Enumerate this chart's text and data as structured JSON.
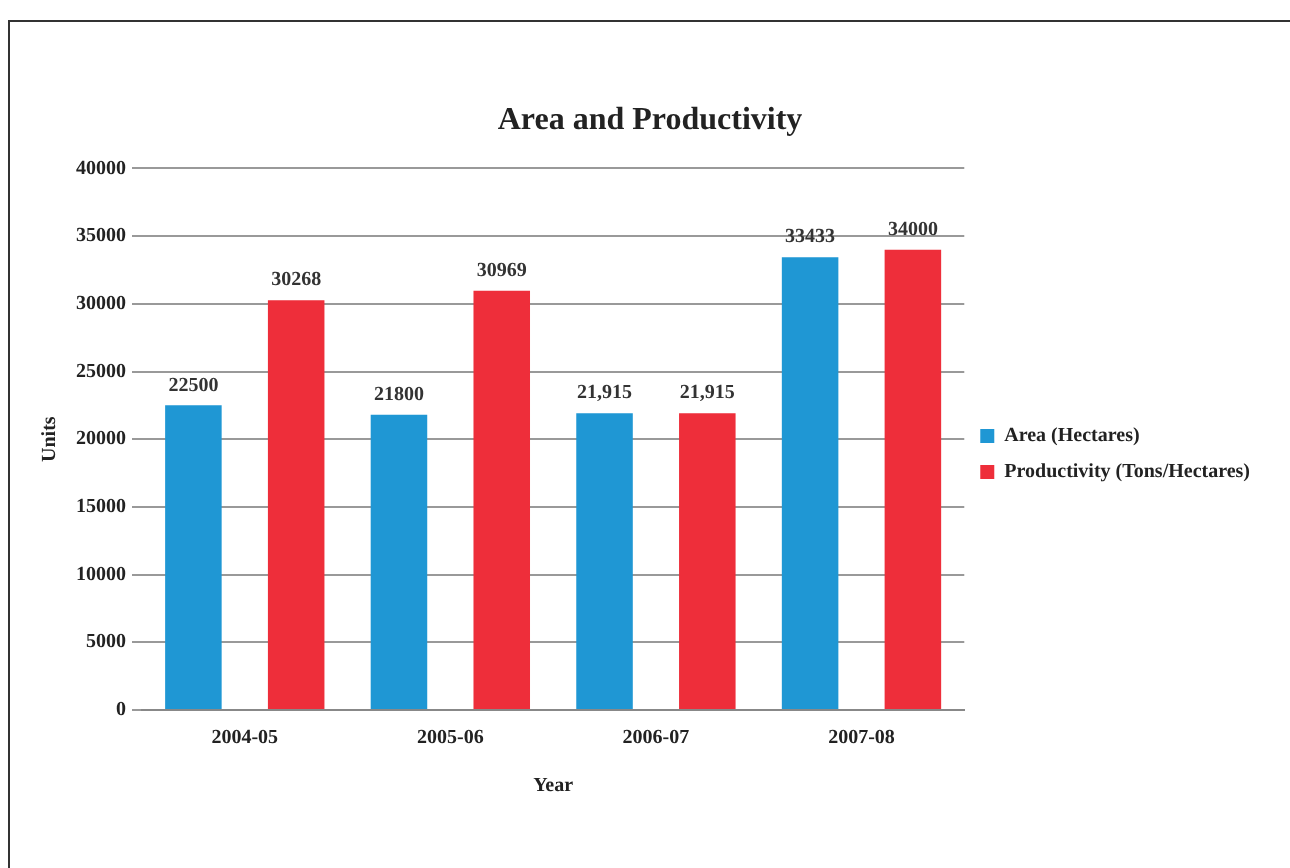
{
  "chart_data": {
    "type": "bar",
    "title": "Area and Productivity",
    "xlabel": "Year",
    "ylabel": "Units",
    "categories": [
      "2004-05",
      "2005-06",
      "2006-07",
      "2007-08"
    ],
    "series": [
      {
        "name": "Area (Hectares)",
        "color": "#1f97d4",
        "values": [
          22500,
          21800,
          21915,
          33433
        ],
        "value_labels": [
          "22500",
          "21800",
          "21,915",
          "33433"
        ]
      },
      {
        "name": "Productivity (Tons/Hectares)",
        "color": "#ee2e3a",
        "values": [
          30268,
          30969,
          21915,
          34000
        ],
        "value_labels": [
          "30268",
          "30969",
          "21,915",
          "34000"
        ]
      }
    ],
    "ylim": [
      0,
      40000
    ],
    "yticks": [
      0,
      5000,
      10000,
      15000,
      20000,
      25000,
      30000,
      35000,
      40000
    ],
    "grid": "y",
    "legend": "right"
  }
}
